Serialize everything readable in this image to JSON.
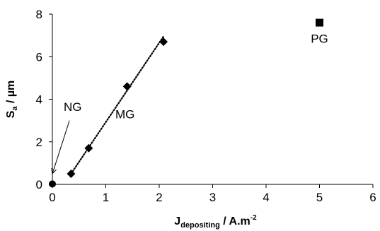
{
  "chart_data": {
    "type": "scatter",
    "xlim": [
      0,
      6
    ],
    "ylim": [
      0,
      8
    ],
    "x_ticks": [
      0,
      1,
      2,
      3,
      4,
      5,
      6
    ],
    "y_ticks": [
      0,
      2,
      4,
      6,
      8
    ],
    "grid": false,
    "xlabel": {
      "main": "J",
      "sub": "depositing",
      "rest": " / A.m",
      "sup": "-2"
    },
    "ylabel": {
      "main": "S",
      "sub": "a",
      "rest": " / µm"
    },
    "series": [
      {
        "name": "NG",
        "marker": "circle",
        "color": "#000000",
        "points": [
          {
            "x": 0,
            "y": 0.02
          }
        ]
      },
      {
        "name": "MG",
        "marker": "diamond",
        "color": "#000000",
        "points": [
          {
            "x": 0.35,
            "y": 0.5
          },
          {
            "x": 0.68,
            "y": 1.7
          },
          {
            "x": 1.4,
            "y": 4.6
          },
          {
            "x": 2.08,
            "y": 6.7
          }
        ],
        "trendline": {
          "style": "dotted",
          "from": {
            "x": 0.35,
            "y": 0.5
          },
          "to": {
            "x": 2.08,
            "y": 6.95
          }
        }
      },
      {
        "name": "PG",
        "marker": "square",
        "color": "#000000",
        "points": [
          {
            "x": 5.0,
            "y": 7.6
          }
        ]
      }
    ],
    "annotations": [
      {
        "text": "NG",
        "x": 0.38,
        "y": 3.65,
        "arrow_to": {
          "x": 0.0,
          "y": 0.5
        },
        "arrow_from": {
          "x": 0.32,
          "y": 3.0
        }
      },
      {
        "text": "MG",
        "x": 1.36,
        "y": 3.3
      },
      {
        "text": "PG",
        "x": 5.0,
        "y": 6.85
      }
    ]
  }
}
